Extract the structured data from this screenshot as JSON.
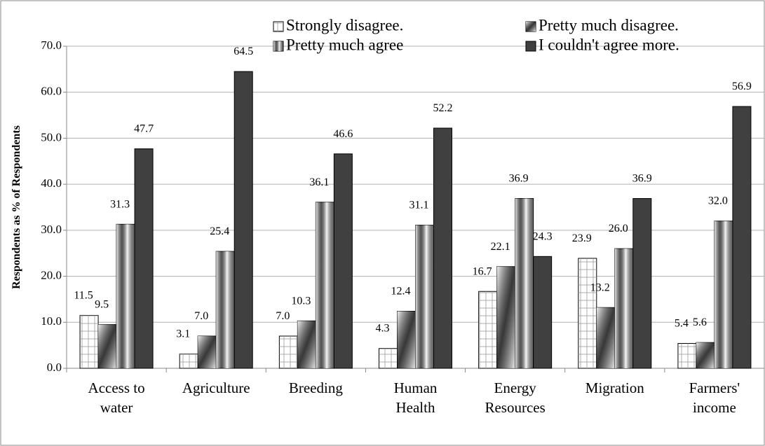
{
  "chart_data": {
    "type": "bar",
    "y_label": "Respondents as % of Respondents",
    "categories": [
      "Access to water",
      "Agriculture",
      "Breeding",
      "Human Health",
      "Energy Resources",
      "Migration",
      "Farmers' income"
    ],
    "series": [
      {
        "name": "Strongly disagree.",
        "color": "#ffffff",
        "values": [
          11.5,
          3.1,
          7.0,
          4.3,
          16.7,
          23.9,
          5.4
        ],
        "value_labels": [
          "11.5",
          "3.1",
          "7.0",
          "4.3",
          "16.7",
          "23.9",
          "5.4"
        ]
      },
      {
        "name": "Pretty much disagree.",
        "color": "#8c8c8c",
        "values": [
          9.5,
          7.0,
          10.3,
          12.4,
          22.1,
          13.2,
          5.6
        ],
        "value_labels": [
          "9.5",
          "7.0",
          "10.3",
          "12.4",
          "22.1",
          "13.2",
          "5.6"
        ]
      },
      {
        "name": "Pretty much agree",
        "color": "#a6a6a6",
        "values": [
          31.3,
          25.4,
          36.1,
          31.1,
          36.9,
          26.0,
          32.0
        ],
        "value_labels": [
          "31.3",
          "25.4",
          "36.1",
          "31.1",
          "36.9",
          "26.0",
          "32.0"
        ]
      },
      {
        "name": "I couldn't agree more.",
        "color": "#404040",
        "values": [
          47.7,
          64.5,
          46.6,
          52.2,
          24.3,
          36.9,
          56.9
        ],
        "value_labels": [
          "47.7",
          "64.5",
          "46.6",
          "52.2",
          "24.3",
          "36.9",
          "56.9"
        ]
      }
    ],
    "ylim": [
      0,
      70
    ],
    "yticks": [
      {
        "value": 0,
        "label": "0.0"
      },
      {
        "value": 10,
        "label": "10.0"
      },
      {
        "value": 20,
        "label": "20.0"
      },
      {
        "value": 30,
        "label": "30.0"
      },
      {
        "value": 40,
        "label": "40.0"
      },
      {
        "value": 50,
        "label": "50.0"
      },
      {
        "value": 60,
        "label": "60.0"
      },
      {
        "value": 70,
        "label": "70.0"
      }
    ],
    "grid": true
  }
}
